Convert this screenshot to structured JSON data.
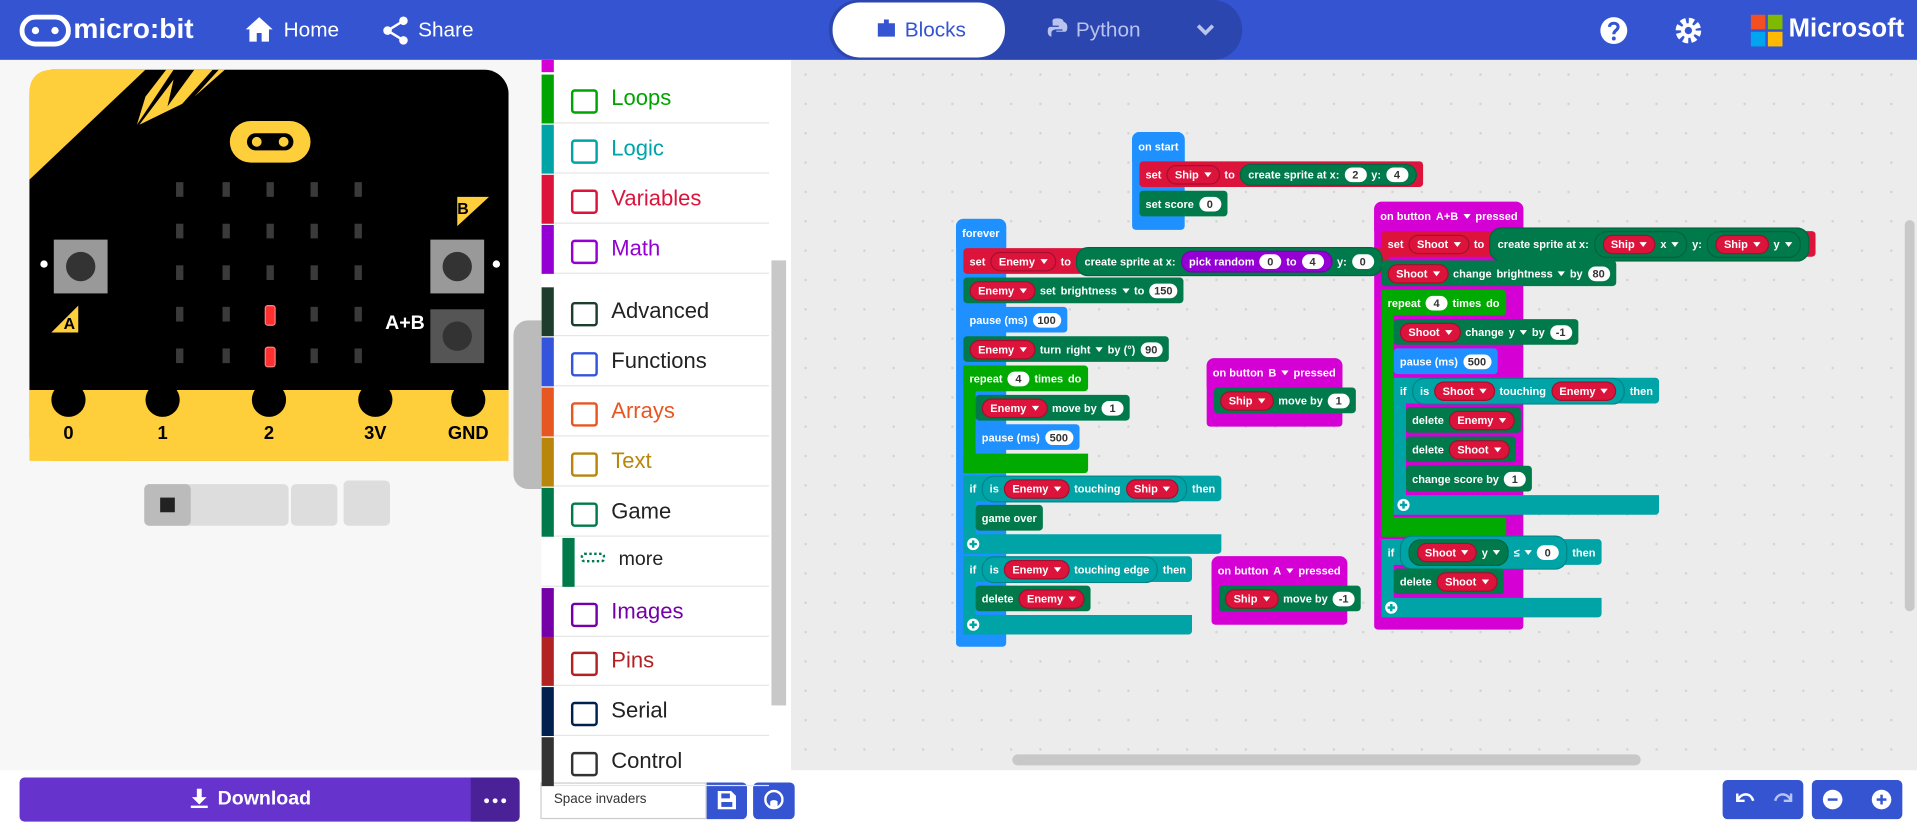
{
  "header": {
    "logo": "micro:bit",
    "nav": [
      "Home",
      "Share"
    ],
    "editor_tabs": [
      "Blocks",
      "Python"
    ],
    "brand": "Microsoft"
  },
  "simulator": {
    "pins": [
      "0",
      "1",
      "2",
      "3V",
      "GND"
    ],
    "buttons": [
      "A",
      "B",
      "A+B"
    ]
  },
  "toolbox": [
    {
      "name": "Loops",
      "color": "#00a400"
    },
    {
      "name": "Logic",
      "color": "#00a4a6"
    },
    {
      "name": "Variables",
      "color": "#dc143c"
    },
    {
      "name": "Math",
      "color": "#9400d3"
    },
    {
      "name": "Advanced",
      "color": "#1f3d2c"
    },
    {
      "name": "Functions",
      "color": "#3455db"
    },
    {
      "name": "Arrays",
      "color": "#e65722"
    },
    {
      "name": "Text",
      "color": "#b8860b"
    },
    {
      "name": "Game",
      "color": "#007a4b"
    },
    {
      "name": "more",
      "color": "#007a4b"
    },
    {
      "name": "Images",
      "color": "#7600a8"
    },
    {
      "name": "Pins",
      "color": "#b22222"
    },
    {
      "name": "Serial",
      "color": "#002050"
    },
    {
      "name": "Control",
      "color": "#333333"
    }
  ],
  "workspace": {
    "stacks": [
      {
        "color": "#1e90ff",
        "hat": [
          "on start"
        ],
        "body": [
          {
            "color": "#dc143c",
            "parts": [
              "set",
              {
                "var": "Ship"
              },
              "to",
              {
                "color": "#007a4b",
                "parts": [
                  "create sprite at x:",
                  {
                    "num": "2"
                  },
                  "y:",
                  {
                    "num": "4"
                  }
                ]
              }
            ]
          },
          {
            "color": "#007a4b",
            "parts": [
              "set score",
              {
                "num": "0"
              }
            ]
          }
        ]
      },
      {
        "color": "#1e90ff",
        "hat": [
          "forever"
        ],
        "body": [
          {
            "color": "#dc143c",
            "parts": [
              "set",
              {
                "var": "Enemy"
              },
              "to",
              {
                "color": "#007a4b",
                "parts": [
                  "create sprite at x:",
                  {
                    "color": "#9400d3",
                    "parts": [
                      "pick random",
                      {
                        "num": "0"
                      },
                      "to",
                      {
                        "num": "4"
                      }
                    ]
                  },
                  "y:",
                  {
                    "num": "0"
                  }
                ]
              }
            ]
          },
          {
            "color": "#007a4b",
            "parts": [
              {
                "var": "Enemy"
              },
              "set",
              {
                "menu": "brightness"
              },
              "to",
              {
                "num": "150"
              }
            ]
          },
          {
            "color": "#1e90ff",
            "parts": [
              "pause (ms)",
              {
                "num": "100"
              }
            ]
          },
          {
            "color": "#007a4b",
            "parts": [
              {
                "var": "Enemy"
              },
              "turn",
              {
                "menu": "right"
              },
              "by (°)",
              {
                "num": "90"
              }
            ]
          },
          {
            "color": "#00aa00",
            "parts": [
              "repeat",
              {
                "num": "4"
              },
              "times",
              "do"
            ],
            "body": [
              {
                "color": "#007a4b",
                "parts": [
                  {
                    "var": "Enemy"
                  },
                  "move by",
                  {
                    "num": "1"
                  }
                ]
              },
              {
                "color": "#1e90ff",
                "parts": [
                  "pause (ms)",
                  {
                    "num": "500"
                  }
                ]
              }
            ]
          },
          {
            "color": "#00a4a6",
            "expandable": true,
            "parts": [
              "if",
              {
                "color": "#00a4a6",
                "parts": [
                  "is",
                  {
                    "var": "Enemy"
                  },
                  "touching",
                  {
                    "var": "Ship"
                  }
                ]
              },
              "then"
            ],
            "body": [
              {
                "color": "#007a4b",
                "parts": [
                  "game over"
                ]
              }
            ]
          },
          {
            "color": "#00a4a6",
            "expandable": true,
            "parts": [
              "if",
              {
                "color": "#00a4a6",
                "parts": [
                  "is",
                  {
                    "var": "Enemy"
                  },
                  "touching edge"
                ]
              },
              "then"
            ],
            "body": [
              {
                "color": "#007a4b",
                "parts": [
                  "delete",
                  {
                    "var": "Enemy"
                  }
                ]
              }
            ]
          }
        ]
      },
      {
        "color": "#d400d4",
        "hat": [
          "on button",
          {
            "menu": "B"
          },
          "pressed"
        ],
        "body": [
          {
            "color": "#007a4b",
            "parts": [
              {
                "var": "Ship"
              },
              "move by",
              {
                "num": "1"
              }
            ]
          }
        ]
      },
      {
        "color": "#d400d4",
        "hat": [
          "on button",
          {
            "menu": "A"
          },
          "pressed"
        ],
        "body": [
          {
            "color": "#007a4b",
            "parts": [
              {
                "var": "Ship"
              },
              "move by",
              {
                "num": "-1"
              }
            ]
          }
        ]
      },
      {
        "color": "#d400d4",
        "hat": [
          "on button",
          {
            "menu": "A+B"
          },
          "pressed"
        ],
        "body": [
          {
            "color": "#dc143c",
            "parts": [
              "set",
              {
                "var": "Shoot"
              },
              "to",
              {
                "color": "#007a4b",
                "parts": [
                  "create sprite at x:",
                  {
                    "color": "#007a4b",
                    "parts": [
                      {
                        "var": "Ship"
                      },
                      {
                        "menu": "x"
                      }
                    ]
                  },
                  "y:",
                  {
                    "color": "#007a4b",
                    "parts": [
                      {
                        "var": "Ship"
                      },
                      {
                        "menu": "y"
                      }
                    ]
                  }
                ]
              }
            ]
          },
          {
            "color": "#007a4b",
            "parts": [
              {
                "var": "Shoot"
              },
              "change",
              {
                "menu": "brightness"
              },
              "by",
              {
                "num": "80"
              }
            ]
          },
          {
            "color": "#00aa00",
            "parts": [
              "repeat",
              {
                "num": "4"
              },
              "times",
              "do"
            ],
            "body": [
              {
                "color": "#007a4b",
                "parts": [
                  {
                    "var": "Shoot"
                  },
                  "change",
                  {
                    "menu": "y"
                  },
                  "by",
                  {
                    "num": "-1"
                  }
                ]
              },
              {
                "color": "#1e90ff",
                "parts": [
                  "pause (ms)",
                  {
                    "num": "500"
                  }
                ]
              },
              {
                "color": "#00a4a6",
                "expandable": true,
                "parts": [
                  "if",
                  {
                    "color": "#00a4a6",
                    "parts": [
                      "is",
                      {
                        "var": "Shoot"
                      },
                      "touching",
                      {
                        "var": "Enemy"
                      }
                    ]
                  },
                  "then"
                ],
                "body": [
                  {
                    "color": "#007a4b",
                    "parts": [
                      "delete",
                      {
                        "var": "Enemy"
                      }
                    ]
                  },
                  {
                    "color": "#007a4b",
                    "parts": [
                      "delete",
                      {
                        "var": "Shoot"
                      }
                    ]
                  },
                  {
                    "color": "#007a4b",
                    "parts": [
                      "change score by",
                      {
                        "num": "1"
                      }
                    ]
                  }
                ]
              }
            ]
          },
          {
            "color": "#00a4a6",
            "expandable": true,
            "parts": [
              "if",
              {
                "color": "#00a4a6",
                "parts": [
                  {
                    "color": "#007a4b",
                    "parts": [
                      {
                        "var": "Shoot"
                      },
                      {
                        "menu": "y"
                      }
                    ]
                  },
                  {
                    "menu": "≤"
                  },
                  {
                    "num": "0"
                  }
                ]
              },
              "then"
            ],
            "body": [
              {
                "color": "#007a4b",
                "parts": [
                  "delete",
                  {
                    "var": "Shoot"
                  }
                ]
              }
            ]
          }
        ]
      }
    ]
  },
  "footer": {
    "download": "Download",
    "project_name": "Space invaders"
  }
}
